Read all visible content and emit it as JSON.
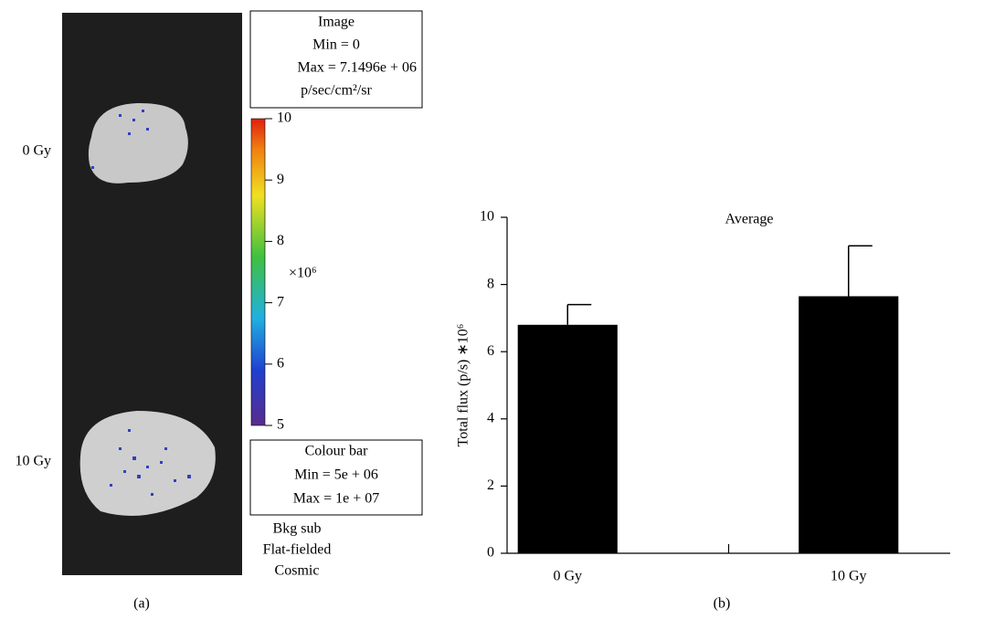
{
  "panel_a": {
    "label": "(a)",
    "rows": [
      "0 Gy",
      "10 Gy"
    ],
    "image_box": [
      "Image",
      "Min = 0",
      "Max = 7.1496e + 06",
      "p/sec/cm²/sr"
    ],
    "colour_box": [
      "Colour bar",
      "Min = 5e + 06",
      "Max = 1e + 07"
    ],
    "notes": [
      "Bkg sub",
      "Flat-fielded",
      "Cosmic"
    ],
    "colorbar": {
      "range": [
        5,
        10
      ],
      "ticks": [
        5,
        6,
        7,
        8,
        9,
        10
      ],
      "multiplier": "×10⁶"
    }
  },
  "chart_data": {
    "type": "bar",
    "panel_label": "(b)",
    "title": "Average",
    "y_label": "Total flux (p/s) ∗10⁶",
    "categories": [
      "0 Gy",
      "10 Gy"
    ],
    "values": [
      6.8,
      7.65
    ],
    "errors": [
      0.6,
      1.5
    ],
    "color": "#000000",
    "ylim": [
      0,
      10
    ],
    "yticks": [
      0,
      2,
      4,
      6,
      8,
      10
    ]
  }
}
